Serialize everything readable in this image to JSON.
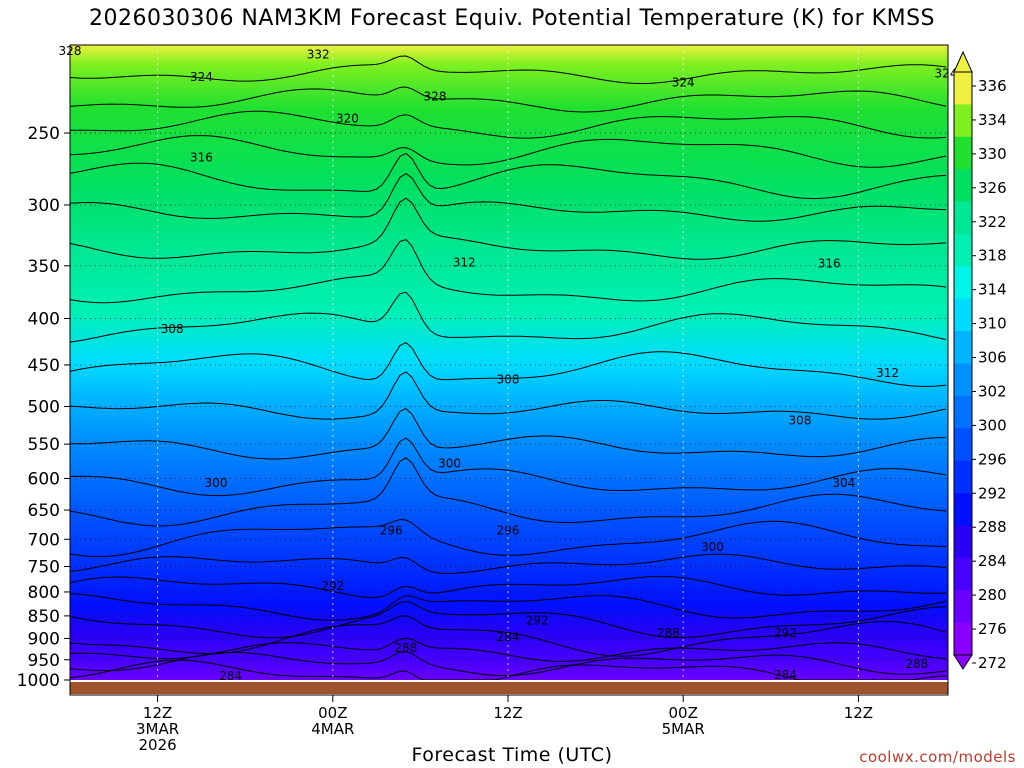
{
  "header": {
    "title": "2026030306 NAM3KM Forecast Equiv. Potential Temperature (K) for KMSS"
  },
  "footer": {
    "credit": "coolwx.com/models"
  },
  "chart_data": {
    "type": "heatmap",
    "title": "2026030306 NAM3KM Forecast Equiv. Potential Temperature (K) for KMSS",
    "xlabel": "Forecast Time (UTC)",
    "ylabel": "",
    "y_scale": "log-pressure",
    "y_inverted": true,
    "ylim_hPa": [
      1000,
      200
    ],
    "y_ticks": [
      250,
      300,
      350,
      400,
      450,
      500,
      550,
      600,
      650,
      700,
      750,
      800,
      850,
      900,
      950,
      1000
    ],
    "x_ticks": [
      {
        "lines": [
          "12Z",
          "3MAR",
          "2026"
        ]
      },
      {
        "lines": [
          "00Z",
          "4MAR"
        ]
      },
      {
        "lines": [
          "12Z"
        ]
      },
      {
        "lines": [
          "00Z",
          "5MAR"
        ]
      },
      {
        "lines": [
          "12Z"
        ]
      }
    ],
    "grid": true,
    "colorbar": {
      "levels": [
        272,
        276,
        280,
        284,
        288,
        292,
        296,
        300,
        302,
        306,
        310,
        314,
        318,
        322,
        326,
        330,
        334,
        336
      ],
      "tick_labels": [
        "336",
        "334",
        "330",
        "326",
        "322",
        "318",
        "314",
        "310",
        "306",
        "302",
        "300",
        "296",
        "292",
        "288",
        "284",
        "280",
        "276",
        "272"
      ],
      "colors": [
        "#8a00ff",
        "#6a00ff",
        "#4800ff",
        "#2a00f5",
        "#0010ff",
        "#0030ff",
        "#0050ff",
        "#0072ff",
        "#0090ff",
        "#00b4ff",
        "#00dcff",
        "#00f5e6",
        "#00f0b4",
        "#00e896",
        "#00e060",
        "#20e030",
        "#80f020",
        "#f0f040"
      ]
    },
    "contour_labels": [
      {
        "text": "328",
        "t": 0,
        "p": 203
      },
      {
        "text": "332",
        "t": 17,
        "p": 205
      },
      {
        "text": "324",
        "t": 9,
        "p": 217
      },
      {
        "text": "328",
        "t": 25,
        "p": 228
      },
      {
        "text": "324",
        "t": 42,
        "p": 220
      },
      {
        "text": "324",
        "t": 60,
        "p": 215
      },
      {
        "text": "320",
        "t": 19,
        "p": 241
      },
      {
        "text": "316",
        "t": 9,
        "p": 266
      },
      {
        "text": "312",
        "t": 27,
        "p": 347
      },
      {
        "text": "316",
        "t": 52,
        "p": 348
      },
      {
        "text": "308",
        "t": 7,
        "p": 411
      },
      {
        "text": "308",
        "t": 30,
        "p": 467
      },
      {
        "text": "312",
        "t": 56,
        "p": 459
      },
      {
        "text": "308",
        "t": 50,
        "p": 518
      },
      {
        "text": "300",
        "t": 26,
        "p": 578
      },
      {
        "text": "300",
        "t": 10,
        "p": 607
      },
      {
        "text": "304",
        "t": 53,
        "p": 607
      },
      {
        "text": "296",
        "t": 22,
        "p": 685
      },
      {
        "text": "296",
        "t": 30,
        "p": 685
      },
      {
        "text": "300",
        "t": 44,
        "p": 714
      },
      {
        "text": "292",
        "t": 18,
        "p": 788
      },
      {
        "text": "292",
        "t": 32,
        "p": 860
      },
      {
        "text": "288",
        "t": 41,
        "p": 888
      },
      {
        "text": "292",
        "t": 49,
        "p": 888
      },
      {
        "text": "284",
        "t": 30,
        "p": 897
      },
      {
        "text": "288",
        "t": 23,
        "p": 922
      },
      {
        "text": "288",
        "t": 58,
        "p": 960
      },
      {
        "text": "284",
        "t": 11,
        "p": 990
      },
      {
        "text": "284",
        "t": 49,
        "p": 988
      }
    ]
  }
}
